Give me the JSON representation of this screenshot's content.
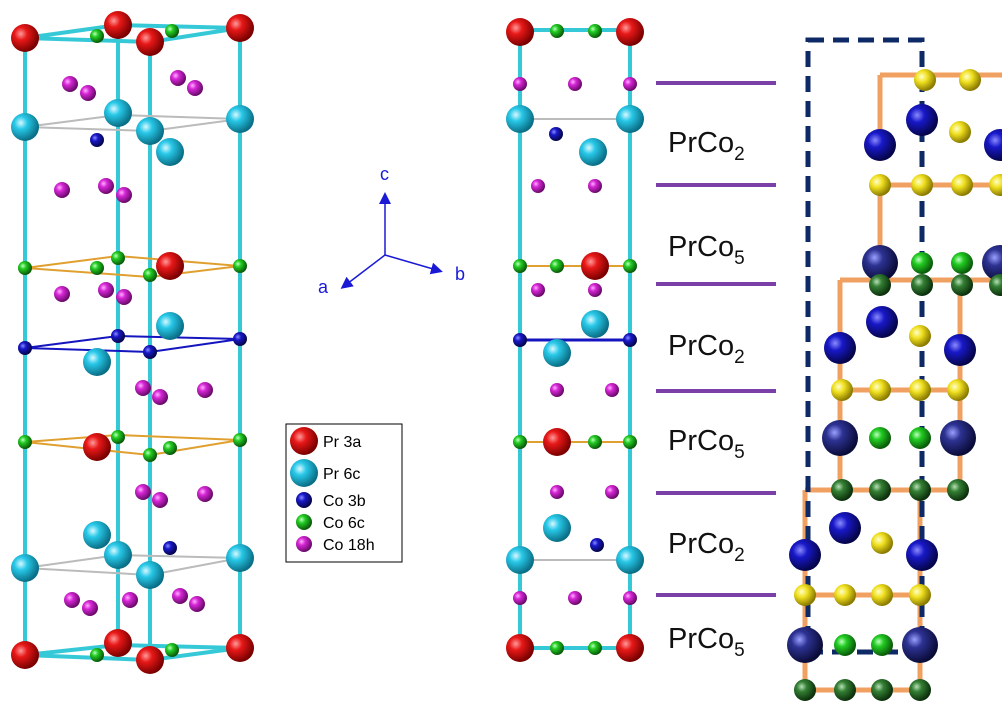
{
  "colors": {
    "pr3a": "#e01010",
    "pr6c": "#20c8e8",
    "co3b": "#1515c0",
    "co6c": "#22cc22",
    "co18h": "#d626d6",
    "cell_edge": "#35c9d8",
    "layer_line": "#7b3fa8",
    "orange_frame": "#f0a060",
    "dashed_box": "#0d2a66",
    "yellow_atom": "#f0e020",
    "navy_atom": "#2a2f8a",
    "darkgreen_atom": "#2f7a2f"
  },
  "axes": {
    "a": "a",
    "b": "b",
    "c": "c"
  },
  "legend": {
    "items": [
      {
        "label": "Pr 3a",
        "color_key": "pr3a"
      },
      {
        "label": "Pr 6c",
        "color_key": "pr6c"
      },
      {
        "label": "Co 3b",
        "color_key": "co3b"
      },
      {
        "label": "Co 6c",
        "color_key": "co6c"
      },
      {
        "label": "Co 18h",
        "color_key": "co18h"
      }
    ]
  },
  "layers": [
    {
      "base": "PrCo",
      "sub": "2"
    },
    {
      "base": "PrCo",
      "sub": "5"
    },
    {
      "base": "PrCo",
      "sub": "2"
    },
    {
      "base": "PrCo",
      "sub": "5"
    },
    {
      "base": "PrCo",
      "sub": "2"
    },
    {
      "base": "PrCo",
      "sub": "5"
    }
  ]
}
